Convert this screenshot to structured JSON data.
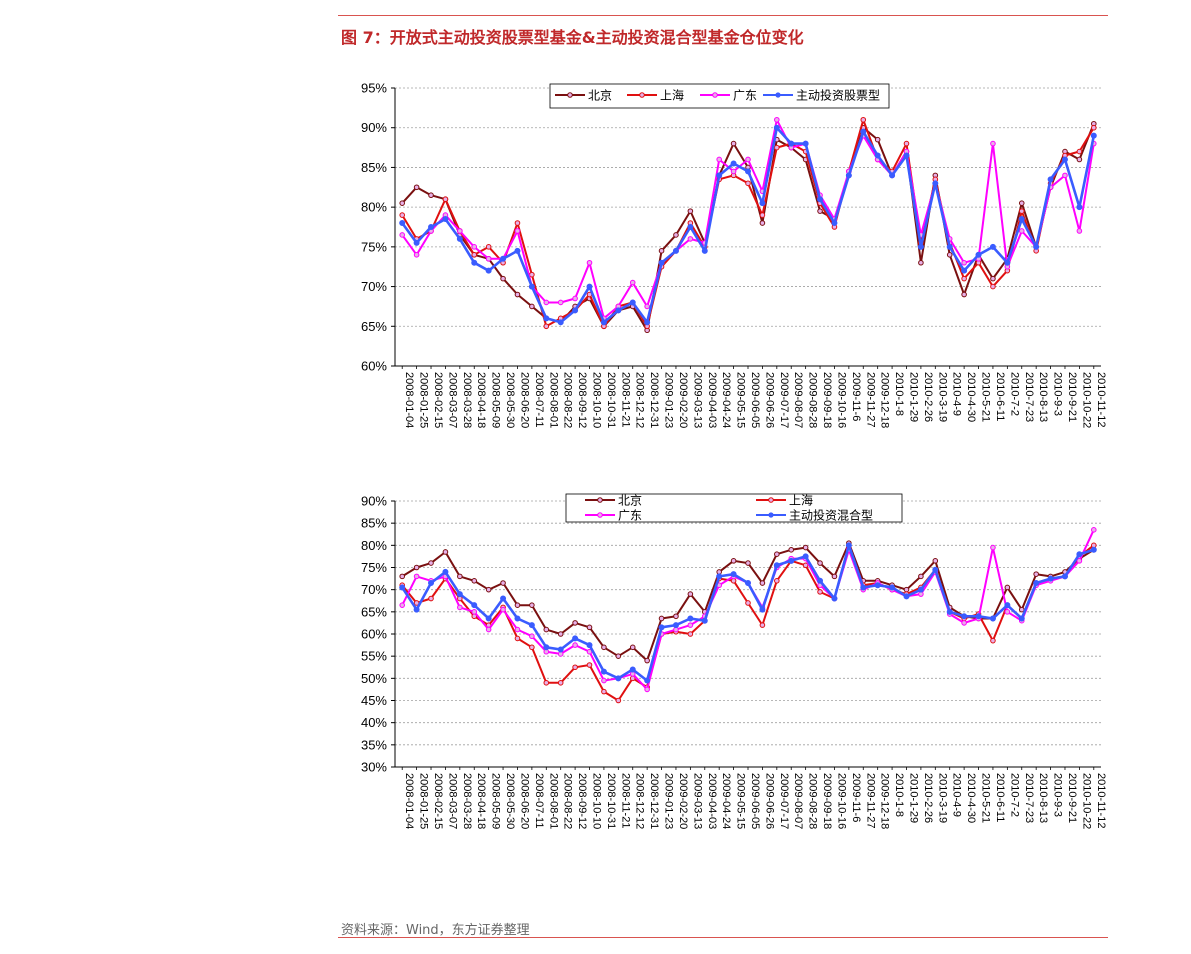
{
  "figure": {
    "title": "图 7：开放式主动投资股票型基金&主动投资混合型基金仓位变化",
    "source": "资料来源：Wind，东方证券整理"
  },
  "colors": {
    "rule": "#d9534f",
    "title": "#c0282a",
    "beijing": "#7a1010",
    "shanghai": "#e01010",
    "guangdong": "#ff00ff",
    "aggregate": "#3a5cff",
    "grid": "#a0a0a0"
  },
  "chart_data": [
    {
      "type": "line",
      "ylim": [
        60,
        95
      ],
      "yticks": [
        "60%",
        "65%",
        "70%",
        "75%",
        "80%",
        "85%",
        "90%",
        "95%"
      ],
      "grid": true,
      "legend_position": "top",
      "categories": [
        "2008-01-04",
        "2008-01-25",
        "2008-02-15",
        "2008-03-07",
        "2008-03-28",
        "2008-04-18",
        "2008-05-09",
        "2008-05-30",
        "2008-06-20",
        "2008-07-11",
        "2008-08-01",
        "2008-08-22",
        "2008-09-12",
        "2008-10-10",
        "2008-10-31",
        "2008-11-21",
        "2008-12-12",
        "2008-12-31",
        "2009-01-23",
        "2009-02-20",
        "2009-03-13",
        "2009-04-03",
        "2009-04-24",
        "2009-05-15",
        "2009-06-05",
        "2009-06-26",
        "2009-07-17",
        "2009-08-07",
        "2009-08-28",
        "2009-09-18",
        "2009-10-16",
        "2009-11-6",
        "2009-11-27",
        "2009-12-18",
        "2010-1-8",
        "2010-1-29",
        "2010-2-26",
        "2010-3-19",
        "2010-4-9",
        "2010-4-30",
        "2010-5-21",
        "2010-6-11",
        "2010-7-2",
        "2010-7-23",
        "2010-8-13",
        "2010-9-3",
        "2010-9-21",
        "2010-10-22",
        "2010-11-12"
      ],
      "xtick_labels": [
        "2008-01-04",
        "2008-01-25",
        "2008-02-15",
        "2008-03-07",
        "2008-03-28",
        "2008-04-18",
        "2008-05-09",
        "2008-05-30",
        "2008-06-20",
        "2008-07-11",
        "2008-08-01",
        "2008-08-22",
        "2008-09-12",
        "2008-10-10",
        "2008-10-31",
        "2008-11-21",
        "2008-12-12",
        "2008-12-31",
        "2009-01-23",
        "2009-02-20",
        "2009-03-13",
        "2009-04-03",
        "2009-04-24",
        "2009-05-15",
        "2009-06-05",
        "2009-06-26",
        "2009-07-17",
        "2009-08-07",
        "2009-08-28",
        "2009-09-18",
        "2009-10-16",
        "2009-11-6",
        "2009-11-27",
        "2009-12-18",
        "2010-1-8",
        "2010-1-29",
        "2010-2-26",
        "2010-3-19",
        "2010-4-9",
        "2010-4-30",
        "2010-5-21",
        "2010-6-11",
        "2010-7-2",
        "2010-7-23",
        "2010-8-13",
        "2010-9-3",
        "2010-9-21",
        "2010-10-22",
        "2010-11-12"
      ],
      "series": [
        {
          "name": "北京",
          "color": "#7a1010",
          "values": [
            80.5,
            82.5,
            81.5,
            81.0,
            76.5,
            74.0,
            73.5,
            71.0,
            69.0,
            67.5,
            66.0,
            65.5,
            67.5,
            68.5,
            65.0,
            67.0,
            67.5,
            64.5,
            74.5,
            76.5,
            79.5,
            75.5,
            84.0,
            88.0,
            85.0,
            78.0,
            88.5,
            87.5,
            86.0,
            79.5,
            78.5,
            84.0,
            90.0,
            88.5,
            84.0,
            87.0,
            73.0,
            84.0,
            74.0,
            69.0,
            74.0,
            71.0,
            73.5,
            80.5,
            75.0,
            82.5,
            87.0,
            86.0,
            90.5
          ]
        },
        {
          "name": "上海",
          "color": "#e01010",
          "values": [
            79.0,
            76.0,
            77.0,
            81.0,
            77.0,
            74.0,
            75.0,
            73.0,
            78.0,
            71.5,
            65.0,
            66.0,
            67.0,
            69.0,
            65.0,
            67.5,
            68.0,
            65.0,
            72.5,
            74.5,
            78.0,
            75.0,
            83.5,
            84.0,
            83.0,
            79.0,
            87.5,
            88.0,
            87.0,
            80.5,
            77.5,
            84.5,
            91.0,
            86.0,
            84.5,
            88.0,
            75.5,
            83.5,
            75.5,
            71.0,
            73.0,
            70.0,
            72.0,
            79.5,
            74.5,
            83.0,
            86.5,
            87.0,
            90.0
          ]
        },
        {
          "name": "广东",
          "color": "#ff00ff",
          "values": [
            76.5,
            74.0,
            77.0,
            79.0,
            77.0,
            75.0,
            73.5,
            73.5,
            77.0,
            70.0,
            68.0,
            68.0,
            68.5,
            73.0,
            66.0,
            67.5,
            70.5,
            67.5,
            73.0,
            74.5,
            76.0,
            75.5,
            86.0,
            84.5,
            86.0,
            82.0,
            91.0,
            87.5,
            88.0,
            81.5,
            78.5,
            84.5,
            89.0,
            86.0,
            84.0,
            87.0,
            76.5,
            83.0,
            76.0,
            73.0,
            73.5,
            88.0,
            72.5,
            77.0,
            75.0,
            82.5,
            84.0,
            77.0,
            88.0
          ]
        },
        {
          "name": "主动投资股票型",
          "color": "#3a5cff",
          "values": [
            78.0,
            75.5,
            77.5,
            78.5,
            76.0,
            73.0,
            72.0,
            73.5,
            74.5,
            70.0,
            66.0,
            65.5,
            67.0,
            70.0,
            65.5,
            67.0,
            68.0,
            65.5,
            73.0,
            74.5,
            77.5,
            74.5,
            84.0,
            85.5,
            84.5,
            80.5,
            90.0,
            88.0,
            88.0,
            81.0,
            78.0,
            84.0,
            89.5,
            86.5,
            84.0,
            86.5,
            75.0,
            83.0,
            75.0,
            72.0,
            74.0,
            75.0,
            73.0,
            78.5,
            75.0,
            83.5,
            86.0,
            80.0,
            89.0
          ]
        }
      ]
    },
    {
      "type": "line",
      "ylim": [
        30,
        90
      ],
      "yticks": [
        "30%",
        "35%",
        "40%",
        "45%",
        "50%",
        "55%",
        "60%",
        "65%",
        "70%",
        "75%",
        "80%",
        "85%",
        "90%"
      ],
      "grid": true,
      "legend_position": "top",
      "categories": [
        "2008-01-04",
        "2008-01-25",
        "2008-02-15",
        "2008-03-07",
        "2008-03-28",
        "2008-04-18",
        "2008-05-09",
        "2008-05-30",
        "2008-06-20",
        "2008-07-11",
        "2008-08-01",
        "2008-08-22",
        "2008-09-12",
        "2008-10-10",
        "2008-10-31",
        "2008-11-21",
        "2008-12-12",
        "2008-12-31",
        "2009-01-23",
        "2009-02-20",
        "2009-03-13",
        "2009-04-03",
        "2009-04-24",
        "2009-05-15",
        "2009-06-05",
        "2009-06-26",
        "2009-07-17",
        "2009-08-07",
        "2009-08-28",
        "2009-09-18",
        "2009-10-16",
        "2009-11-6",
        "2009-11-27",
        "2009-12-18",
        "2010-1-8",
        "2010-1-29",
        "2010-2-26",
        "2010-3-19",
        "2010-4-9",
        "2010-4-30",
        "2010-5-21",
        "2010-6-11",
        "2010-7-2",
        "2010-7-23",
        "2010-8-13",
        "2010-9-3",
        "2010-9-21",
        "2010-10-22",
        "2010-11-12"
      ],
      "xtick_labels": [
        "2008-01-04",
        "2008-01-25",
        "2008-02-15",
        "2008-03-07",
        "2008-03-28",
        "2008-04-18",
        "2008-05-09",
        "2008-05-30",
        "2008-06-20",
        "2008-07-11",
        "2008-08-01",
        "2008-08-22",
        "2008-09-12",
        "2008-10-10",
        "2008-10-31",
        "2008-11-21",
        "2008-12-12",
        "2008-12-31",
        "2009-01-23",
        "2009-02-20",
        "2009-03-13",
        "2009-04-03",
        "2009-04-24",
        "2009-05-15",
        "2009-06-05",
        "2009-06-26",
        "2009-07-17",
        "2009-08-07",
        "2009-08-28",
        "2009-09-18",
        "2009-10-16",
        "2009-11-6",
        "2009-11-27",
        "2009-12-18",
        "2010-1-8",
        "2010-1-29",
        "2010-2-26",
        "2010-3-19",
        "2010-4-9",
        "2010-4-30",
        "2010-5-21",
        "2010-6-11",
        "2010-7-2",
        "2010-7-23",
        "2010-8-13",
        "2010-9-3",
        "2010-9-21",
        "2010-10-22",
        "2010-11-12"
      ],
      "series": [
        {
          "name": "北京",
          "color": "#7a1010",
          "values": [
            73.0,
            75.0,
            76.0,
            78.5,
            73.0,
            72.0,
            70.0,
            71.5,
            66.5,
            66.5,
            61.0,
            60.0,
            62.5,
            61.5,
            57.0,
            55.0,
            57.0,
            54.0,
            63.5,
            64.0,
            69.0,
            65.0,
            74.0,
            76.5,
            76.0,
            71.5,
            78.0,
            79.0,
            79.5,
            76.0,
            73.0,
            80.5,
            72.0,
            72.0,
            71.0,
            70.0,
            73.0,
            76.5,
            66.0,
            64.0,
            63.5,
            63.5,
            70.5,
            65.5,
            73.5,
            73.0,
            74.0,
            77.0,
            79.0
          ]
        },
        {
          "name": "上海",
          "color": "#e01010",
          "values": [
            71.0,
            67.0,
            68.0,
            72.5,
            68.0,
            64.0,
            62.0,
            66.0,
            59.0,
            57.0,
            49.0,
            49.0,
            52.5,
            53.0,
            47.0,
            45.0,
            50.0,
            48.0,
            60.0,
            60.5,
            60.0,
            63.0,
            72.5,
            72.0,
            67.0,
            62.0,
            72.0,
            76.5,
            75.5,
            69.5,
            68.0,
            79.5,
            71.0,
            71.5,
            70.0,
            69.0,
            70.5,
            74.5,
            65.0,
            63.5,
            64.5,
            58.5,
            66.5,
            63.5,
            71.5,
            72.5,
            73.0,
            77.5,
            80.0
          ]
        },
        {
          "name": "广东",
          "color": "#ff00ff",
          "values": [
            66.5,
            73.0,
            72.0,
            73.0,
            66.0,
            65.0,
            61.0,
            65.5,
            61.0,
            59.5,
            56.0,
            55.5,
            57.5,
            56.0,
            49.5,
            50.0,
            51.0,
            47.5,
            60.0,
            61.0,
            62.0,
            64.0,
            71.0,
            73.0,
            71.5,
            66.0,
            75.0,
            77.0,
            77.0,
            71.0,
            68.0,
            79.0,
            70.0,
            71.5,
            70.0,
            68.5,
            69.0,
            74.0,
            64.5,
            62.5,
            63.5,
            79.5,
            65.0,
            63.0,
            71.0,
            72.0,
            73.0,
            76.5,
            83.5
          ]
        },
        {
          "name": "主动投资混合型",
          "color": "#3a5cff",
          "values": [
            70.5,
            65.5,
            71.5,
            74.0,
            69.0,
            66.5,
            63.5,
            68.0,
            63.5,
            62.0,
            57.0,
            56.5,
            59.0,
            57.5,
            51.5,
            50.0,
            52.0,
            49.5,
            61.5,
            62.0,
            63.5,
            63.0,
            73.0,
            73.5,
            71.5,
            65.5,
            75.5,
            76.5,
            77.5,
            72.0,
            68.0,
            80.0,
            70.5,
            71.0,
            70.5,
            68.5,
            70.0,
            74.5,
            65.0,
            64.0,
            64.0,
            63.5,
            66.5,
            63.5,
            71.5,
            72.5,
            73.0,
            78.0,
            79.0
          ]
        }
      ]
    }
  ]
}
